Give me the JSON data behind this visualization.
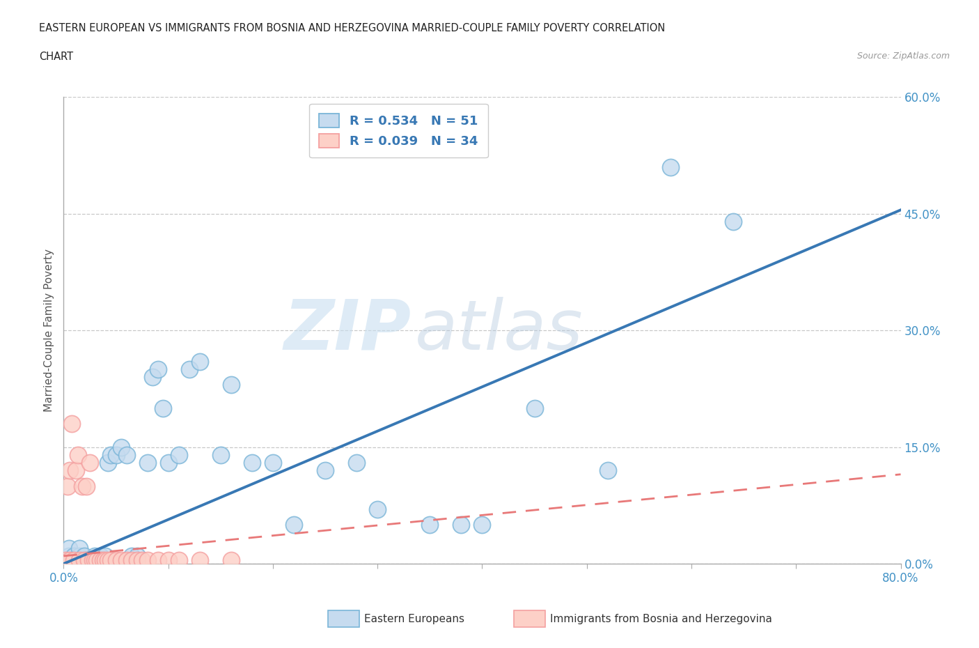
{
  "title_line1": "EASTERN EUROPEAN VS IMMIGRANTS FROM BOSNIA AND HERZEGOVINA MARRIED-COUPLE FAMILY POVERTY CORRELATION",
  "title_line2": "CHART",
  "source": "Source: ZipAtlas.com",
  "ylabel": "Married-Couple Family Poverty",
  "xlim": [
    0.0,
    0.8
  ],
  "ylim": [
    0.0,
    0.6
  ],
  "yticks": [
    0.0,
    0.15,
    0.3,
    0.45,
    0.6
  ],
  "ytick_labels_right": [
    "0.0%",
    "15.0%",
    "30.0%",
    "45.0%",
    "60.0%"
  ],
  "xtick_positions": [
    0.0,
    0.1,
    0.2,
    0.3,
    0.4,
    0.5,
    0.6,
    0.7,
    0.8
  ],
  "grid_color": "#c8c8c8",
  "background_color": "#ffffff",
  "blue_color": "#7ab5d8",
  "blue_fill": "#c6dbef",
  "pink_color": "#f4a0a0",
  "pink_fill": "#fdd0c7",
  "blue_label": "Eastern Europeans",
  "pink_label": "Immigrants from Bosnia and Herzegovina",
  "R_blue": 0.534,
  "N_blue": 51,
  "R_pink": 0.039,
  "N_pink": 34,
  "blue_trend_color": "#3878b4",
  "pink_trend_color": "#e87878",
  "watermark_zip": "ZIP",
  "watermark_atlas": "atlas",
  "blue_scatter_x": [
    0.005,
    0.005,
    0.005,
    0.008,
    0.01,
    0.01,
    0.012,
    0.015,
    0.015,
    0.018,
    0.02,
    0.02,
    0.022,
    0.025,
    0.028,
    0.03,
    0.03,
    0.032,
    0.035,
    0.038,
    0.04,
    0.042,
    0.045,
    0.05,
    0.055,
    0.06,
    0.065,
    0.07,
    0.08,
    0.085,
    0.09,
    0.095,
    0.1,
    0.11,
    0.12,
    0.13,
    0.15,
    0.16,
    0.18,
    0.2,
    0.22,
    0.25,
    0.28,
    0.3,
    0.35,
    0.38,
    0.4,
    0.45,
    0.52,
    0.58,
    0.64
  ],
  "blue_scatter_y": [
    0.005,
    0.01,
    0.02,
    0.005,
    0.005,
    0.01,
    0.005,
    0.01,
    0.02,
    0.005,
    0.005,
    0.01,
    0.005,
    0.005,
    0.005,
    0.005,
    0.01,
    0.005,
    0.01,
    0.005,
    0.01,
    0.13,
    0.14,
    0.14,
    0.15,
    0.14,
    0.01,
    0.01,
    0.13,
    0.24,
    0.25,
    0.2,
    0.13,
    0.14,
    0.25,
    0.26,
    0.14,
    0.23,
    0.13,
    0.13,
    0.05,
    0.12,
    0.13,
    0.07,
    0.05,
    0.05,
    0.05,
    0.2,
    0.12,
    0.51,
    0.44
  ],
  "pink_scatter_x": [
    0.002,
    0.004,
    0.006,
    0.006,
    0.008,
    0.01,
    0.012,
    0.014,
    0.015,
    0.018,
    0.02,
    0.022,
    0.024,
    0.025,
    0.028,
    0.03,
    0.032,
    0.035,
    0.038,
    0.04,
    0.042,
    0.045,
    0.05,
    0.055,
    0.06,
    0.065,
    0.07,
    0.075,
    0.08,
    0.09,
    0.1,
    0.11,
    0.13,
    0.16
  ],
  "pink_scatter_y": [
    0.005,
    0.1,
    0.005,
    0.12,
    0.18,
    0.005,
    0.12,
    0.14,
    0.005,
    0.1,
    0.005,
    0.1,
    0.005,
    0.13,
    0.005,
    0.005,
    0.005,
    0.005,
    0.005,
    0.005,
    0.005,
    0.005,
    0.005,
    0.005,
    0.005,
    0.005,
    0.005,
    0.005,
    0.005,
    0.005,
    0.005,
    0.005,
    0.005,
    0.005
  ],
  "blue_trend_x": [
    0.0,
    0.8
  ],
  "blue_trend_y": [
    0.0,
    0.455
  ],
  "pink_trend_x": [
    0.0,
    0.8
  ],
  "pink_trend_y": [
    0.01,
    0.115
  ]
}
